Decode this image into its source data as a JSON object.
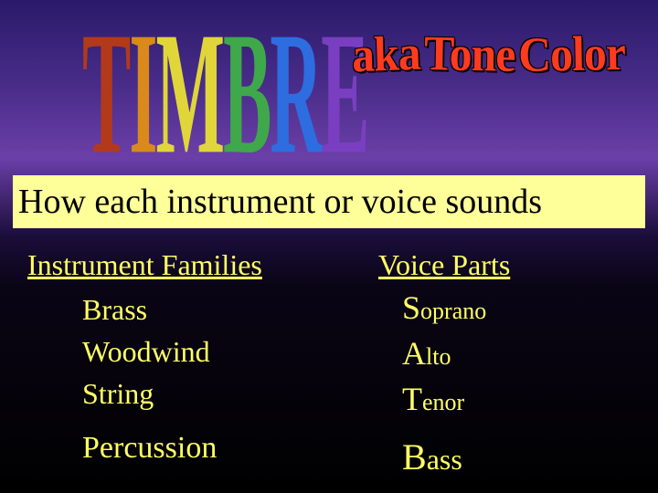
{
  "title": {
    "letters": [
      "T",
      "I",
      "M",
      "B",
      "R",
      "E"
    ],
    "letter_colors": [
      "#b23a1a",
      "#d98a1a",
      "#e0d63a",
      "#3fa84a",
      "#2d6de0",
      "#7a3fc0"
    ],
    "subtitle_words": [
      "aka",
      "Tone",
      "Color"
    ],
    "subtitle_color": "#ff3b1f",
    "title_fontsize": 80,
    "subtitle_fontsize": 54
  },
  "definition": {
    "text": "How each instrument or voice sounds",
    "bg": "#ffff99",
    "fontsize": 38
  },
  "families": {
    "heading": "Instrument Families",
    "items": [
      "Brass",
      "Woodwind",
      "String",
      "Percussion"
    ],
    "color": "#ffff66",
    "heading_fontsize": 32,
    "item_fontsize": 32
  },
  "voices": {
    "heading": "Voice Parts",
    "items": [
      "Soprano",
      "Alto",
      "Tenor",
      "Bass"
    ],
    "color": "#ffff66",
    "heading_fontsize": 32,
    "cap_fontsize": 36,
    "rest_fontsize": 26
  },
  "background": {
    "gradient_stops": [
      "#2a1a6a",
      "#4a2d8a",
      "#6b3fa8",
      "#1a0d3a",
      "#0a0515",
      "#000000"
    ]
  }
}
